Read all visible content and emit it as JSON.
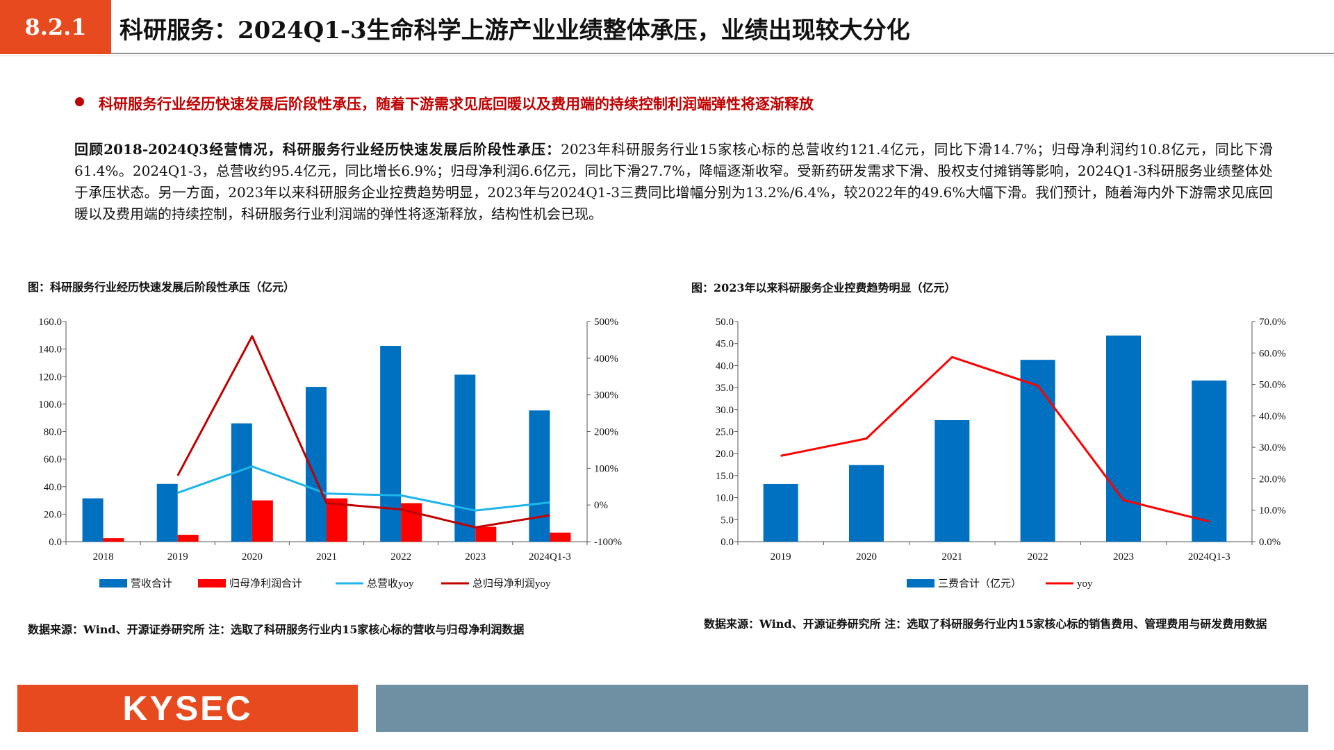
{
  "header": {
    "section": "8.2.1",
    "title": "科研服务：2024Q1-3生命科学上游产业业绩整体承压，业绩出现较大分化"
  },
  "subhead": "科研服务行业经历快速发展后阶段性承压，随着下游需求见底回暖以及费用端的持续控制利润端弹性将逐渐释放",
  "paragraph": {
    "lead": "回顾2018-2024Q3经营情况，科研服务行业经历快速发展后阶段性承压：",
    "body": "2023年科研服务行业15家核心标的总营收约121.4亿元，同比下滑14.7%；归母净利润约10.8亿元，同比下滑61.4%。2024Q1-3，总营收约95.4亿元，同比增长6.9%；归母净利润6.6亿元，同比下滑27.7%，降幅逐渐收窄。受新药研发需求下滑、股权支付摊销等影响，2024Q1-3科研服务业绩整体处于承压状态。另一方面，2023年以来科研服务企业控费趋势明显，2023年与2024Q1-3三费同比增幅分别为13.2%/6.4%，较2022年的49.6%大幅下滑。我们预计，随着海内外下游需求见底回暖以及费用端的持续控制，科研服务行业利润端的弹性将逐渐释放，结构性机会已现。"
  },
  "chart1": {
    "title": "图：科研服务行业经历快速发展后阶段性承压（亿元）",
    "note": "数据来源：Wind、开源证券研究所 注：选取了科研服务行业内15家核心标的营收与归母净利润数据"
  },
  "chart2": {
    "title": "图：2023年以来科研服务企业控费趋势明显（亿元）",
    "note": "数据来源：Wind、开源证券研究所 注：选取了科研服务行业内15家核心标的销售费用、管理费用与研发费用数据"
  },
  "footer": {
    "logo": "KYSEC"
  },
  "colors": {
    "accent": "#e84a1f",
    "blue": "#0070c0",
    "red": "#ff0000",
    "lightblue": "#1fb4ea",
    "darkred": "#c00000",
    "footer_bar": "#6f8fa3"
  },
  "chart_data": [
    {
      "type": "bar",
      "categories": [
        "2018",
        "2019",
        "2020",
        "2021",
        "2022",
        "2023",
        "2024Q1-3"
      ],
      "left_axis": {
        "ylim": [
          0,
          160
        ],
        "ticks": [
          "0.0",
          "20.0",
          "40.0",
          "60.0",
          "80.0",
          "100.0",
          "120.0",
          "140.0",
          "160.0"
        ]
      },
      "right_axis": {
        "ylim": [
          -100,
          500
        ],
        "ticks": [
          "-100%",
          "0%",
          "100%",
          "200%",
          "300%",
          "400%",
          "500%"
        ]
      },
      "bars": [
        {
          "name": "营收合计",
          "color": "#0070c0",
          "values": [
            31.5,
            42.0,
            86.0,
            112.5,
            142.3,
            121.4,
            95.4
          ]
        },
        {
          "name": "归母净利润合计",
          "color": "#ff0000",
          "values": [
            2.5,
            5.0,
            30.0,
            31.5,
            28.0,
            10.8,
            6.6
          ]
        }
      ],
      "lines": [
        {
          "name": "总营收yoy",
          "color": "#1fb4ea",
          "values": [
            null,
            33,
            105,
            31,
            26,
            -15,
            7
          ]
        },
        {
          "name": "总归母净利润yoy",
          "color": "#c00000",
          "values": [
            null,
            80,
            460,
            5,
            -12,
            -61,
            -28
          ]
        }
      ]
    },
    {
      "type": "bar",
      "categories": [
        "2019",
        "2020",
        "2021",
        "2022",
        "2023",
        "2024Q1-3"
      ],
      "left_axis": {
        "ylim": [
          0,
          50
        ],
        "ticks": [
          "0.0",
          "5.0",
          "10.0",
          "15.0",
          "20.0",
          "25.0",
          "30.0",
          "35.0",
          "40.0",
          "45.0",
          "50.0"
        ]
      },
      "right_axis": {
        "ylim": [
          0,
          70
        ],
        "ticks": [
          "0.0%",
          "10.0%",
          "20.0%",
          "30.0%",
          "40.0%",
          "50.0%",
          "60.0%",
          "70.0%"
        ]
      },
      "bars": [
        {
          "name": "三费合计（亿元）",
          "color": "#0070c0",
          "values": [
            13.1,
            17.4,
            27.6,
            41.3,
            46.8,
            36.6
          ]
        }
      ],
      "lines": [
        {
          "name": "yoy",
          "color": "#ff0000",
          "values": [
            27.3,
            32.8,
            58.7,
            49.6,
            13.2,
            6.4
          ]
        }
      ]
    }
  ]
}
